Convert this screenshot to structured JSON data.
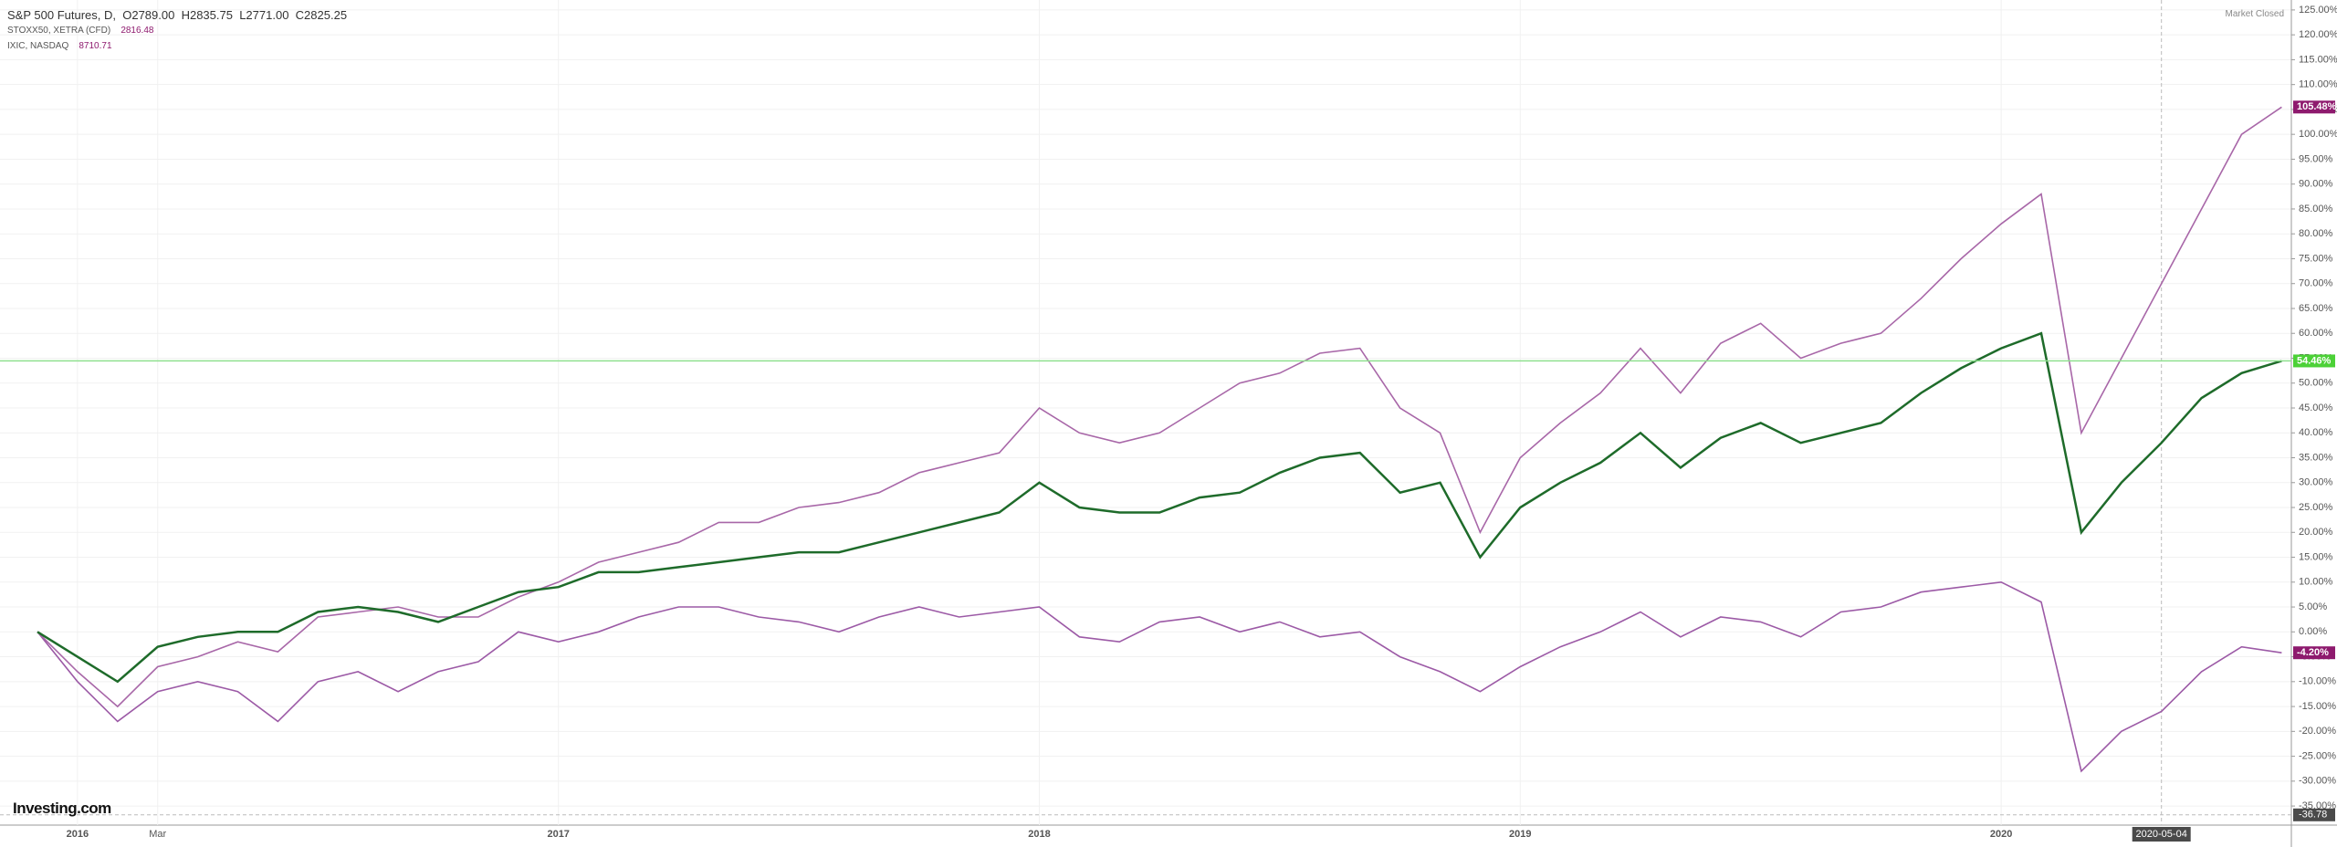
{
  "header": {
    "symbol": "S&P 500 Futures, D,",
    "ohlc": [
      "O2789.00",
      "H2835.75",
      "L2771.00",
      "C2825.25"
    ],
    "compare": [
      {
        "name": "STOXX50, XETRA (CFD)",
        "value": "2816.48"
      },
      {
        "name": "IXIC, NASDAQ",
        "value": "8710.71"
      }
    ],
    "status": "Market Closed",
    "logo": "Investing.com"
  },
  "chart_data": {
    "type": "line",
    "categories": [
      null,
      "2016",
      null,
      "Mar",
      null,
      null,
      null,
      null,
      null,
      null,
      null,
      null,
      null,
      "2017",
      null,
      null,
      null,
      null,
      null,
      null,
      null,
      null,
      null,
      null,
      null,
      "2018",
      null,
      null,
      null,
      null,
      null,
      null,
      null,
      null,
      null,
      null,
      null,
      "2019",
      null,
      null,
      null,
      null,
      null,
      null,
      null,
      null,
      null,
      null,
      null,
      "2020",
      null,
      null,
      null,
      "2020-05-04",
      null,
      null,
      null
    ],
    "series": [
      {
        "name": "S&P 500 Futures",
        "color": "#1e6b2a",
        "values": [
          0,
          -5,
          -10,
          -3,
          -1,
          0,
          0,
          4,
          5,
          4,
          2,
          5,
          8,
          9,
          12,
          12,
          13,
          14,
          15,
          16,
          16,
          18,
          20,
          22,
          24,
          30,
          25,
          24,
          24,
          27,
          28,
          32,
          35,
          36,
          28,
          30,
          15,
          25,
          30,
          34,
          40,
          33,
          39,
          42,
          38,
          40,
          42,
          48,
          53,
          57,
          60,
          20,
          30,
          38,
          47,
          52,
          54.46
        ],
        "value_labels": [
          null,
          null,
          null,
          null,
          null,
          null,
          null,
          null,
          null,
          null,
          null,
          null,
          null,
          null,
          null,
          null,
          null,
          null,
          null,
          null,
          null,
          null,
          null,
          null,
          null,
          null,
          null,
          null,
          null,
          null,
          null,
          null,
          null,
          null,
          null,
          null,
          null,
          null,
          null,
          null,
          null,
          null,
          null,
          null,
          null,
          null,
          null,
          null,
          null,
          null,
          null,
          null,
          null,
          null,
          null,
          null,
          "54.46%"
        ],
        "label_color": "#4cd137"
      },
      {
        "name": "STOXX50, XETRA (CFD)",
        "color": "#9c5aa6",
        "values": [
          0,
          -10,
          -18,
          -12,
          -10,
          -12,
          -18,
          -10,
          -8,
          -12,
          -8,
          -6,
          0,
          -2,
          0,
          3,
          5,
          5,
          3,
          2,
          0,
          3,
          5,
          3,
          4,
          5,
          -1,
          -2,
          2,
          3,
          0,
          2,
          -1,
          0,
          -5,
          -8,
          -12,
          -7,
          -3,
          0,
          4,
          -1,
          3,
          2,
          -1,
          4,
          5,
          8,
          9,
          10,
          6,
          -28,
          -20,
          -16,
          -8,
          -3,
          -4.2
        ],
        "value_labels": [
          null,
          null,
          null,
          null,
          null,
          null,
          null,
          null,
          null,
          null,
          null,
          null,
          null,
          null,
          null,
          null,
          null,
          null,
          null,
          null,
          null,
          null,
          null,
          null,
          null,
          null,
          null,
          null,
          null,
          null,
          null,
          null,
          null,
          null,
          null,
          null,
          null,
          null,
          null,
          null,
          null,
          null,
          null,
          null,
          null,
          null,
          null,
          null,
          null,
          null,
          null,
          null,
          null,
          null,
          null,
          null,
          "-4.20%"
        ],
        "label_color": "#8e1a6e"
      },
      {
        "name": "IXIC, NASDAQ",
        "color": "#a867a8",
        "values": [
          0,
          -8,
          -15,
          -7,
          -5,
          -2,
          -4,
          3,
          4,
          5,
          3,
          3,
          7,
          10,
          14,
          16,
          18,
          22,
          22,
          25,
          26,
          28,
          32,
          34,
          36,
          45,
          40,
          38,
          40,
          45,
          50,
          52,
          56,
          57,
          45,
          40,
          20,
          35,
          42,
          48,
          57,
          48,
          58,
          62,
          55,
          58,
          60,
          67,
          75,
          82,
          88,
          40,
          55,
          70,
          85,
          100,
          105.48
        ],
        "value_labels": [
          null,
          null,
          null,
          null,
          null,
          null,
          null,
          null,
          null,
          null,
          null,
          null,
          null,
          null,
          null,
          null,
          null,
          null,
          null,
          null,
          null,
          null,
          null,
          null,
          null,
          null,
          null,
          null,
          null,
          null,
          null,
          null,
          null,
          null,
          null,
          null,
          null,
          null,
          null,
          null,
          null,
          null,
          null,
          null,
          null,
          null,
          null,
          null,
          null,
          null,
          null,
          null,
          null,
          null,
          null,
          null,
          "105.48%"
        ],
        "label_color": "#8e1a6e"
      }
    ],
    "ylim": [
      -37,
      127
    ],
    "yticks": [
      {
        "value": 125,
        "label": "125.00%"
      },
      {
        "value": 120,
        "label": "120.00%"
      },
      {
        "value": 115,
        "label": "115.00%"
      },
      {
        "value": 110,
        "label": "110.00%"
      },
      {
        "value": 105,
        "label": "105.00%"
      },
      {
        "value": 100,
        "label": "100.00%"
      },
      {
        "value": 95,
        "label": "95.00%"
      },
      {
        "value": 90,
        "label": "90.00%"
      },
      {
        "value": 85,
        "label": "85.00%"
      },
      {
        "value": 80,
        "label": "80.00%"
      },
      {
        "value": 75,
        "label": "75.00%"
      },
      {
        "value": 70,
        "label": "70.00%"
      },
      {
        "value": 65,
        "label": "65.00%"
      },
      {
        "value": 60,
        "label": "60.00%"
      },
      {
        "value": 55,
        "label": "55.00%"
      },
      {
        "value": 50,
        "label": "50.00%"
      },
      {
        "value": 45,
        "label": "45.00%"
      },
      {
        "value": 40,
        "label": "40.00%"
      },
      {
        "value": 35,
        "label": "35.00%"
      },
      {
        "value": 30,
        "label": "30.00%"
      },
      {
        "value": 25,
        "label": "25.00%"
      },
      {
        "value": 20,
        "label": "20.00%"
      },
      {
        "value": 15,
        "label": "15.00%"
      },
      {
        "value": 10,
        "label": "10.00%"
      },
      {
        "value": 5,
        "label": "5.00%"
      },
      {
        "value": 0,
        "label": "0.00%"
      },
      {
        "value": -5,
        "label": "-5.00%"
      },
      {
        "value": -10,
        "label": "-10.00%"
      },
      {
        "value": -15,
        "label": "-15.00%"
      },
      {
        "value": -20,
        "label": "-20.00%"
      },
      {
        "value": -25,
        "label": "-25.00%"
      },
      {
        "value": -30,
        "label": "-30.00%"
      },
      {
        "value": -35,
        "label": "-35.00%"
      }
    ],
    "crosshair_value": {
      "value": -36.78,
      "label": "-36.78"
    },
    "grid": true
  }
}
